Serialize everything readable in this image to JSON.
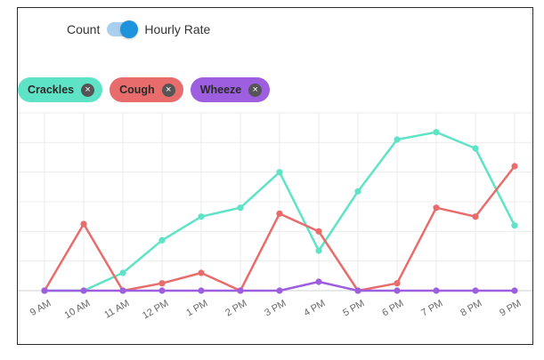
{
  "toggle": {
    "left_label": "Count",
    "right_label": "Hourly Rate",
    "state": "Hourly Rate"
  },
  "chips": [
    {
      "label": "Crackles",
      "color": "#5fe3c6",
      "icon": "close-icon"
    },
    {
      "label": "Cough",
      "color": "#e96c6c",
      "icon": "close-icon"
    },
    {
      "label": "Wheeze",
      "color": "#9d5ee0",
      "icon": "close-icon"
    }
  ],
  "chart_data": {
    "type": "line",
    "categories": [
      "9 AM",
      "10 AM",
      "11 AM",
      "12 PM",
      "1 PM",
      "2 PM",
      "3 PM",
      "4 PM",
      "5 PM",
      "6 PM",
      "7 PM",
      "8 PM",
      "9 PM"
    ],
    "series": [
      {
        "name": "Crackles",
        "color": "#5fe3c6",
        "values": [
          0,
          0,
          1.2,
          3.4,
          5.0,
          5.6,
          8.0,
          2.7,
          6.7,
          10.2,
          10.7,
          9.6,
          4.4
        ]
      },
      {
        "name": "Cough",
        "color": "#e96c6c",
        "values": [
          0,
          4.5,
          0,
          0.5,
          1.2,
          0,
          5.2,
          4.0,
          0,
          0.5,
          5.6,
          5.0,
          8.4
        ]
      },
      {
        "name": "Wheeze",
        "color": "#9d5ee0",
        "values": [
          0,
          0,
          0,
          0,
          0,
          0,
          0,
          0.6,
          0,
          0,
          0,
          0,
          0
        ]
      }
    ],
    "ylim": [
      0,
      12
    ],
    "grid": true,
    "legend": "top-left"
  }
}
